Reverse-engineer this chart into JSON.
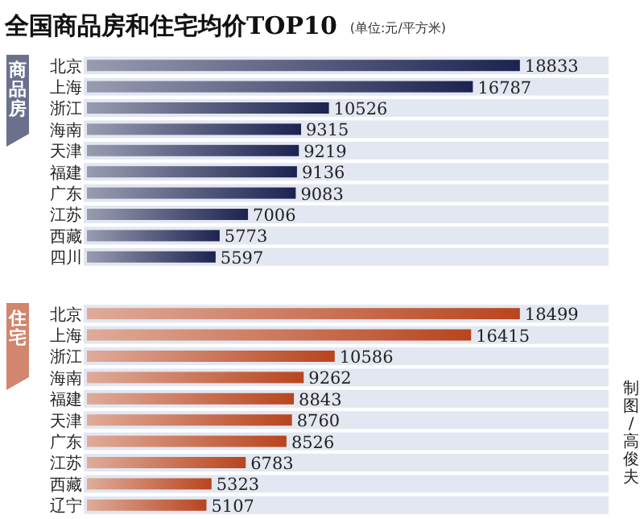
{
  "chart_data": [
    {
      "type": "bar",
      "orientation": "horizontal",
      "title": "全国商品房和住宅均价TOP10",
      "subtitle": "(单位:元/平方米)",
      "ylabel": "商品房",
      "data_labels": true,
      "color": "#1c2350",
      "categories": [
        "北京",
        "上海",
        "浙江",
        "海南",
        "天津",
        "福建",
        "广东",
        "江苏",
        "西藏",
        "四川"
      ],
      "values": [
        18833,
        16787,
        10526,
        9315,
        9219,
        9136,
        9083,
        7006,
        5773,
        5597
      ]
    },
    {
      "type": "bar",
      "orientation": "horizontal",
      "ylabel": "住宅",
      "data_labels": true,
      "color": "#b8451e",
      "annotations": [
        "制图/高俊夫"
      ],
      "categories": [
        "北京",
        "上海",
        "浙江",
        "海南",
        "福建",
        "天津",
        "广东",
        "江苏",
        "西藏",
        "辽宁"
      ],
      "values": [
        18499,
        16415,
        10586,
        9262,
        8843,
        8760,
        8526,
        6783,
        5323,
        5107
      ]
    }
  ]
}
